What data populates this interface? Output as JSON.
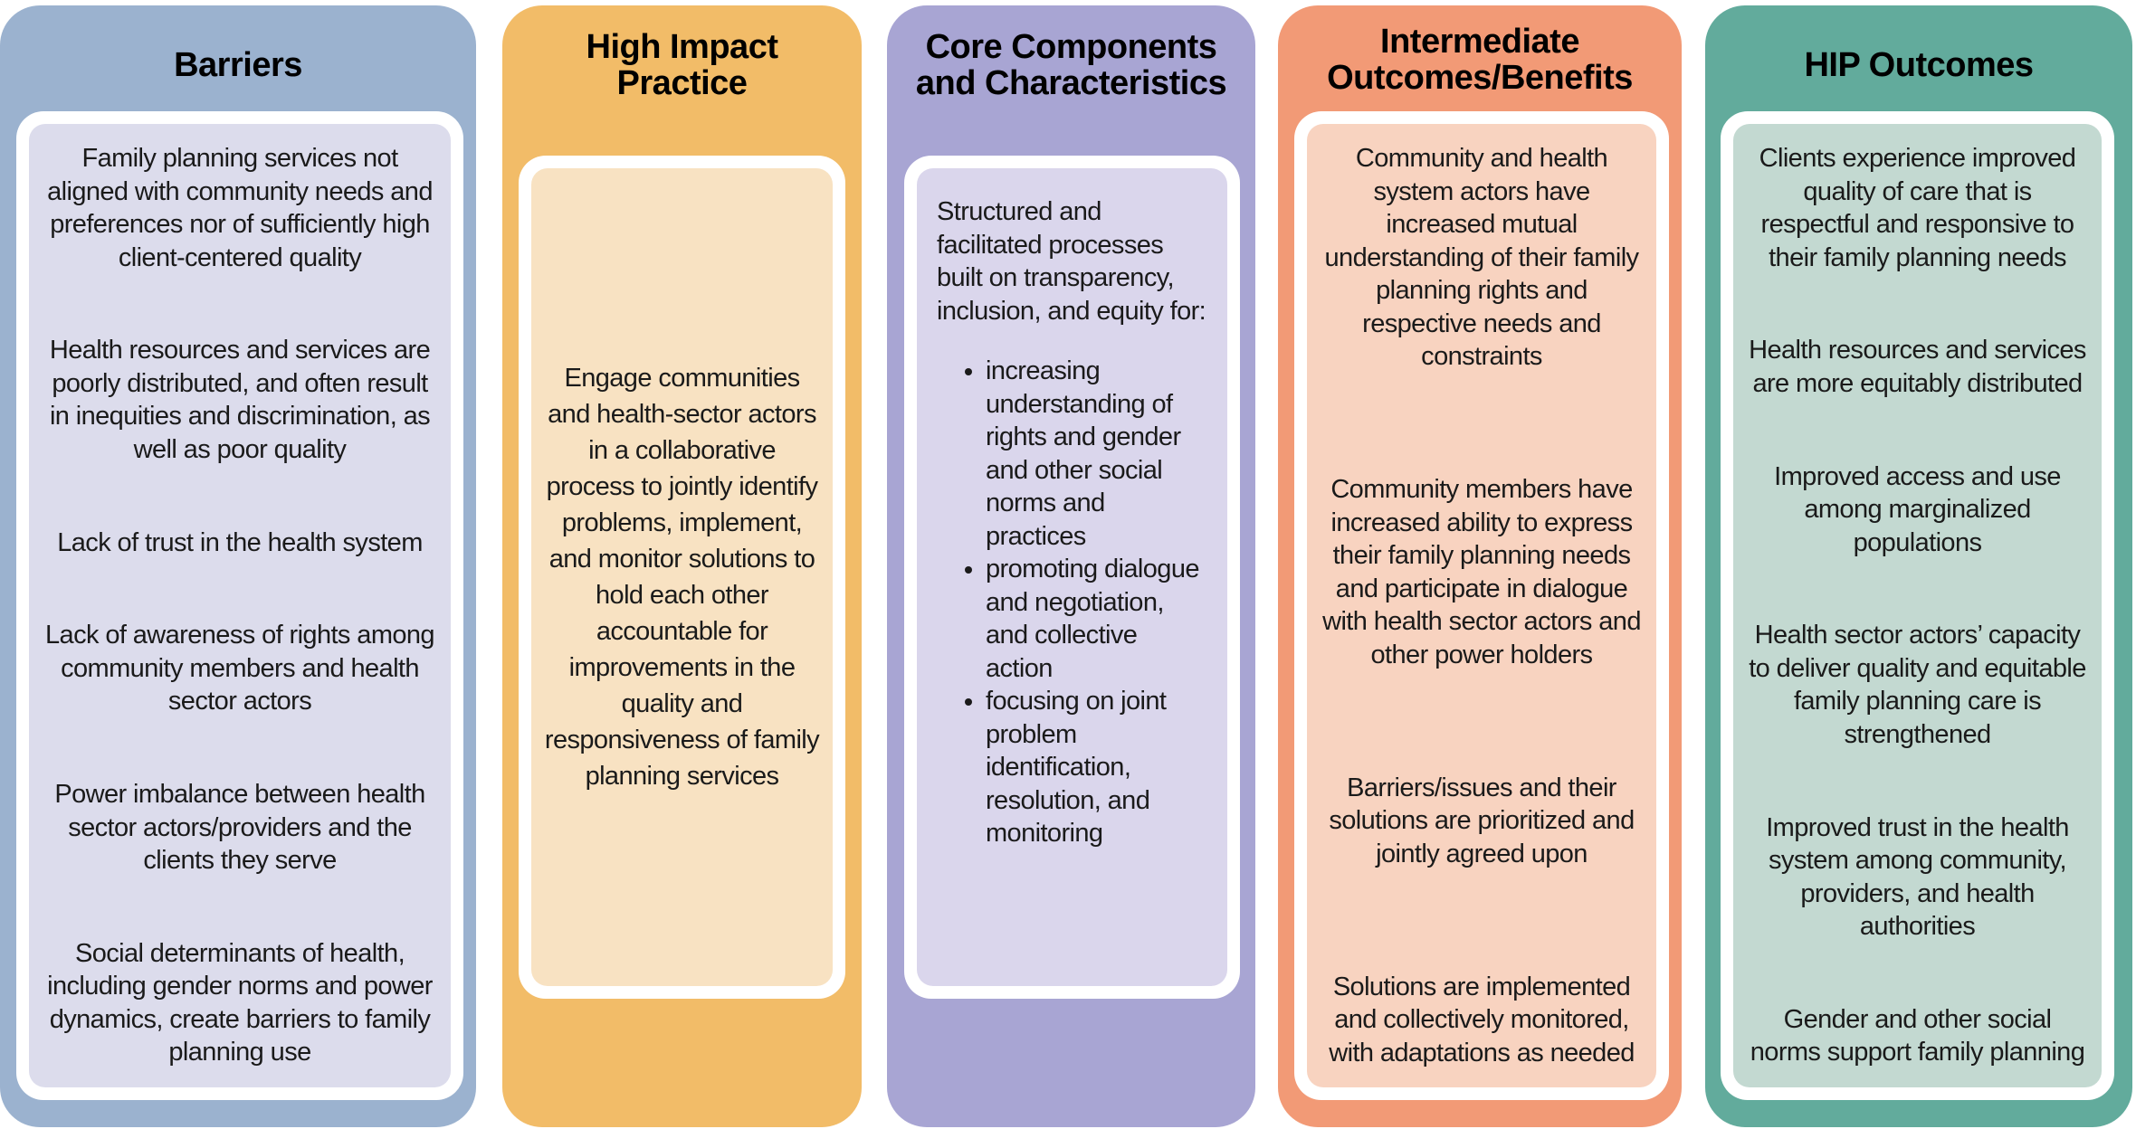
{
  "columns": [
    {
      "title": "Barriers",
      "color": "#9bb2cf",
      "fill": "#dcdcec",
      "items": [
        "Family planning services not aligned with community needs and preferences nor of sufficiently high client-centered quality",
        "Health resources and services are poorly distributed, and often result in inequities and discrimination, as well as poor quality",
        "Lack of trust in the health system",
        "Lack of awareness of rights among community members and health sector actors",
        "Power imbalance between health sector actors/providers and the clients they serve",
        "Social determinants of health, including gender norms and power dynamics, create barriers to family planning use"
      ]
    },
    {
      "title": "High Impact Practice",
      "color": "#f2bc68",
      "fill": "#f8e2c2",
      "text": "Engage communities and health-sector actors in a collaborative process to jointly identify problems, implement, and monitor solutions to hold each other accountable for improvements in the quality and responsiveness of family planning services"
    },
    {
      "title": "Core Components and Characteristics",
      "color": "#a8a5d3",
      "fill": "#dad6ec",
      "intro": "Structured and facilitated processes built on transparency, inclusion, and equity for:",
      "bullets": [
        "increasing understanding of rights and gender and other social norms and practices",
        "promoting dialogue and negotiation, and collective action",
        "focusing on joint problem identification, resolution, and monitoring"
      ]
    },
    {
      "title": "Intermediate Outcomes/Benefits",
      "color": "#f29a76",
      "fill": "#f8d3c0",
      "items": [
        "Community and health system actors have increased mutual understanding of their family planning rights and respective needs and constraints",
        "Community members have increased ability to express their family planning needs and participate in dialogue with health sector actors and other power holders",
        "Barriers/issues and their solutions are prioritized and jointly agreed upon",
        "Solutions are implemented and collectively monitored, with adaptations as needed"
      ]
    },
    {
      "title": "HIP Outcomes",
      "color": "#62ab9c",
      "fill": "#c3d9d1",
      "items": [
        "Clients experience improved quality of care that is respectful and responsive to their family planning needs",
        "Health resources and services are more equitably distributed",
        "Improved access and use among marginalized populations",
        "Health sector actors’ capacity to deliver quality and equitable family planning care is strengthened",
        "Improved trust in the health system among community, providers, and health authorities",
        "Gender and other social norms support family planning"
      ]
    }
  ]
}
